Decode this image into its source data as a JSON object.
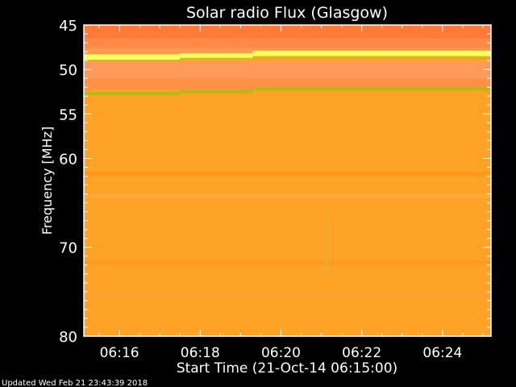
{
  "chart_data": {
    "type": "heatmap",
    "title": "Solar radio Flux (Glasgow)",
    "xlabel": "Start Time (21-Oct-14 06:15:00)",
    "ylabel": "Frequency [MHz]",
    "ylim": [
      45,
      80
    ],
    "y_ticks": [
      "45",
      "50",
      "55",
      "60",
      "70",
      "80"
    ],
    "y_tick_values": [
      45,
      50,
      55,
      60,
      70,
      80
    ],
    "x_ticks": [
      "06:16",
      "06:18",
      "06:20",
      "06:22",
      "06:24"
    ],
    "x_tick_minutes": [
      16,
      18,
      20,
      22,
      24
    ],
    "xlim_minutes": [
      15.12,
      25.2
    ],
    "background_color": "#FFA326",
    "bands": [
      {
        "f": [
          45,
          46.5
        ],
        "t": [
          15.12,
          25.2
        ],
        "color": "#FF7A36"
      },
      {
        "f": [
          46.5,
          47.6
        ],
        "t": [
          15.12,
          25.2
        ],
        "color": "#FF8A48"
      },
      {
        "f": [
          47.6,
          48.3
        ],
        "t": [
          15.12,
          25.2
        ],
        "color": "#FF9850"
      },
      {
        "f": [
          48.3,
          48.9
        ],
        "t": [
          15.12,
          17.5
        ],
        "color": "#FFFF60"
      },
      {
        "f": [
          48.2,
          48.7
        ],
        "t": [
          17.5,
          19.3
        ],
        "color": "#FFFF60"
      },
      {
        "f": [
          47.9,
          48.5
        ],
        "t": [
          19.3,
          25.2
        ],
        "color": "#FFFF60"
      },
      {
        "f": [
          48.9,
          49.1
        ],
        "t": [
          15.12,
          17.5
        ],
        "color": "#C8C020"
      },
      {
        "f": [
          48.7,
          48.9
        ],
        "t": [
          17.5,
          19.3
        ],
        "color": "#C8C020"
      },
      {
        "f": [
          48.5,
          48.7
        ],
        "t": [
          19.3,
          25.2
        ],
        "color": "#C8C020"
      },
      {
        "f": [
          49.1,
          51.0
        ],
        "t": [
          15.12,
          25.2
        ],
        "color": "#FF9A5A"
      },
      {
        "f": [
          51.0,
          52.3
        ],
        "t": [
          15.12,
          25.2
        ],
        "color": "#FF9048"
      },
      {
        "f": [
          52.5,
          52.9
        ],
        "t": [
          15.12,
          17.5
        ],
        "color": "#B8B818"
      },
      {
        "f": [
          52.3,
          52.7
        ],
        "t": [
          17.5,
          19.3
        ],
        "color": "#B8B818"
      },
      {
        "f": [
          52.0,
          52.4
        ],
        "t": [
          19.3,
          25.2
        ],
        "color": "#B8B818"
      },
      {
        "f": [
          61.5,
          62.0
        ],
        "t": [
          15.12,
          25.2
        ],
        "color": "#FF9818"
      },
      {
        "f": [
          64.0,
          64.5
        ],
        "t": [
          15.12,
          25.2
        ],
        "color": "#FFA838"
      },
      {
        "f": [
          71.5,
          72.0
        ],
        "t": [
          15.12,
          25.2
        ],
        "color": "#FF9A20"
      },
      {
        "f": [
          75.0,
          75.5
        ],
        "t": [
          15.12,
          25.2
        ],
        "color": "#FFA030"
      },
      {
        "f": [
          66.5,
          73.5
        ],
        "t": [
          21.1,
          21.15
        ],
        "color": "#E0B030"
      }
    ]
  },
  "footer": {
    "updated": "Updated Wed Feb 21 23:43:39 2018"
  }
}
